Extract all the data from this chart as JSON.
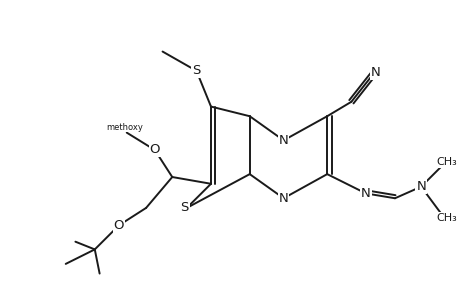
{
  "background_color": "#ffffff",
  "line_color": "#1a1a1a",
  "line_width": 1.4,
  "font_size": 9.5,
  "figsize": [
    4.6,
    3.0
  ],
  "dpi": 100,
  "xlim": [
    0,
    10
  ],
  "ylim": [
    0,
    6.5
  ]
}
